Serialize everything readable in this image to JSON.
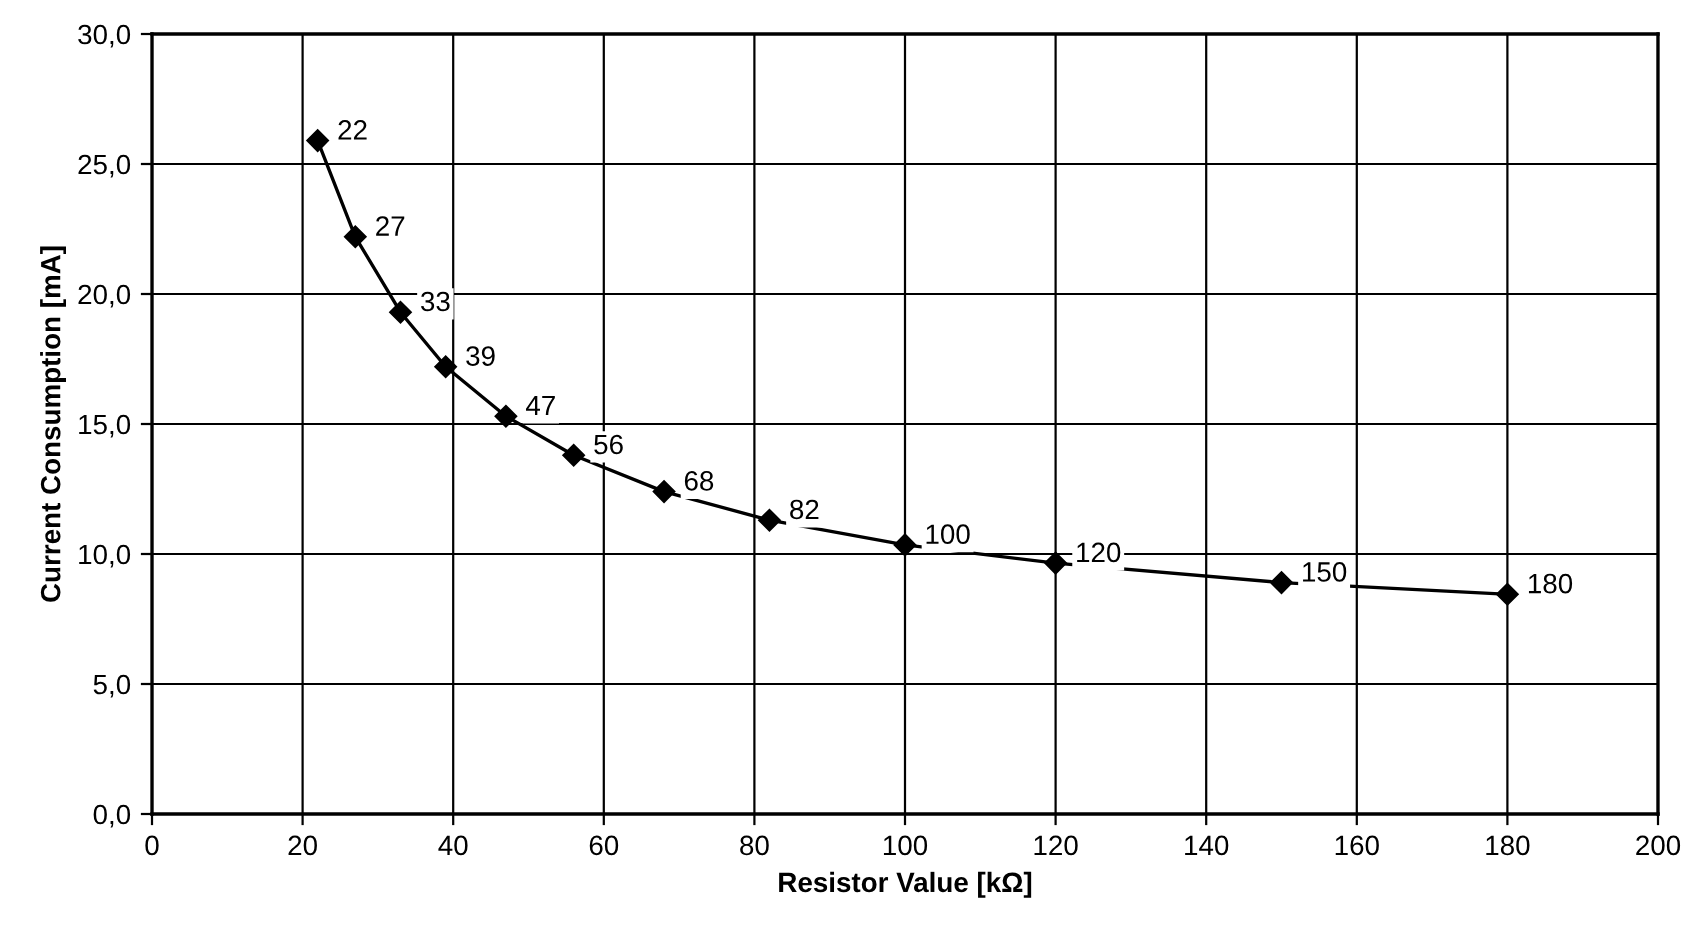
{
  "chart_data": {
    "type": "line",
    "xlabel": "Resistor Value [kΩ]",
    "ylabel": "Current Consumption [mA]",
    "x": [
      22,
      27,
      33,
      39,
      47,
      56,
      68,
      82,
      100,
      120,
      150,
      180
    ],
    "series": [
      {
        "color": "#000000",
        "values": [
          25.9,
          22.2,
          19.3,
          17.2,
          15.3,
          13.8,
          12.4,
          11.3,
          10.35,
          9.65,
          8.9,
          8.45
        ]
      }
    ],
    "annotations": [
      {
        "text": "22",
        "x": 22,
        "y": 25.9
      },
      {
        "text": "27",
        "x": 27,
        "y": 22.2
      },
      {
        "text": "33",
        "x": 33,
        "y": 19.3
      },
      {
        "text": "39",
        "x": 39,
        "y": 17.2
      },
      {
        "text": "47",
        "x": 47,
        "y": 15.3
      },
      {
        "text": "56",
        "x": 56,
        "y": 13.8
      },
      {
        "text": "68",
        "x": 68,
        "y": 12.4
      },
      {
        "text": "82",
        "x": 82,
        "y": 11.3
      },
      {
        "text": "100",
        "x": 100,
        "y": 10.35
      },
      {
        "text": "120",
        "x": 120,
        "y": 9.65
      },
      {
        "text": "150",
        "x": 150,
        "y": 8.9
      },
      {
        "text": "180",
        "x": 180,
        "y": 8.45
      }
    ],
    "xlim": [
      0,
      200
    ],
    "xticks": [
      0,
      20,
      40,
      60,
      80,
      100,
      120,
      140,
      160,
      180,
      200
    ],
    "ylim": [
      0,
      30
    ],
    "yticks": [
      {
        "value": 0,
        "label": "0,0"
      },
      {
        "value": 5,
        "label": "5,0"
      },
      {
        "value": 10,
        "label": "10,0"
      },
      {
        "value": 15,
        "label": "15,0"
      },
      {
        "value": 20,
        "label": "20,0"
      },
      {
        "value": 25,
        "label": "25,0"
      },
      {
        "value": 30,
        "label": "30,0"
      }
    ],
    "grid": true,
    "marker": "diamond",
    "line_style": "solid"
  }
}
